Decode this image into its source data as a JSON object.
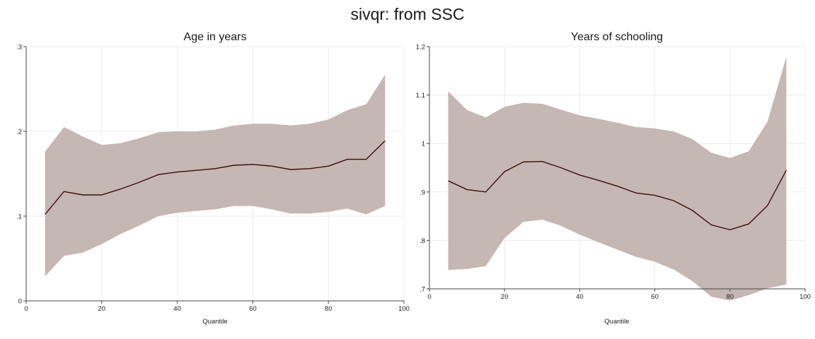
{
  "figure": {
    "title": "sivqr: from SSC"
  },
  "colors": {
    "band": "#c5b7b3",
    "line": "#3b0d0a"
  },
  "chart_data": [
    {
      "type": "area",
      "title": "Age in years",
      "xlabel": "Quantile",
      "ylabel": "",
      "xlim": [
        0,
        100
      ],
      "ylim": [
        0,
        0.3
      ],
      "xticks": [
        0,
        20,
        40,
        60,
        80,
        100
      ],
      "xtick_labels": [
        "0",
        "20",
        "40",
        "60",
        "80",
        "100"
      ],
      "yticks": [
        0,
        0.1,
        0.2,
        0.3
      ],
      "ytick_labels": [
        "0",
        ".1",
        ".2",
        ".3"
      ],
      "grid": true,
      "x": [
        5,
        10,
        15,
        20,
        25,
        30,
        35,
        40,
        45,
        50,
        55,
        60,
        65,
        70,
        75,
        80,
        85,
        90,
        95
      ],
      "series": [
        {
          "type": "line",
          "values": [
            0.102,
            0.129,
            0.125,
            0.125,
            0.132,
            0.14,
            0.149,
            0.152,
            0.154,
            0.156,
            0.16,
            0.161,
            0.159,
            0.155,
            0.156,
            0.159,
            0.167,
            0.167,
            0.189
          ]
        },
        {
          "type": "band",
          "lower": [
            0.029,
            0.053,
            0.057,
            0.067,
            0.079,
            0.089,
            0.1,
            0.104,
            0.106,
            0.108,
            0.112,
            0.112,
            0.108,
            0.103,
            0.103,
            0.105,
            0.109,
            0.102,
            0.112
          ],
          "upper": [
            0.176,
            0.205,
            0.194,
            0.184,
            0.186,
            0.192,
            0.199,
            0.2,
            0.2,
            0.202,
            0.207,
            0.209,
            0.209,
            0.207,
            0.209,
            0.214,
            0.225,
            0.232,
            0.267
          ]
        }
      ]
    },
    {
      "type": "area",
      "title": "Years of schooling",
      "xlabel": "Quantile",
      "ylabel": "",
      "xlim": [
        0,
        100
      ],
      "ylim": [
        0.7,
        1.2
      ],
      "xticks": [
        0,
        20,
        40,
        60,
        80,
        100
      ],
      "xtick_labels": [
        "0",
        "20",
        "40",
        "60",
        "80",
        "100"
      ],
      "yticks": [
        0.7,
        0.8,
        0.9,
        1.0,
        1.1,
        1.2
      ],
      "ytick_labels": [
        ".7",
        ".8",
        ".9",
        "1",
        "1.1",
        "1.2"
      ],
      "grid": true,
      "x": [
        5,
        10,
        15,
        20,
        25,
        30,
        35,
        40,
        45,
        50,
        55,
        60,
        65,
        70,
        75,
        80,
        85,
        90,
        95
      ],
      "series": [
        {
          "type": "line",
          "values": [
            0.923,
            0.905,
            0.9,
            0.942,
            0.962,
            0.963,
            0.95,
            0.935,
            0.924,
            0.912,
            0.898,
            0.893,
            0.882,
            0.862,
            0.832,
            0.822,
            0.834,
            0.872,
            0.945
          ]
        },
        {
          "type": "band",
          "lower": [
            0.739,
            0.741,
            0.747,
            0.805,
            0.838,
            0.843,
            0.83,
            0.812,
            0.796,
            0.781,
            0.766,
            0.756,
            0.74,
            0.716,
            0.684,
            0.676,
            0.687,
            0.701,
            0.709
          ],
          "upper": [
            1.108,
            1.069,
            1.054,
            1.076,
            1.084,
            1.082,
            1.07,
            1.058,
            1.051,
            1.043,
            1.034,
            1.031,
            1.025,
            1.009,
            0.981,
            0.97,
            0.984,
            1.045,
            1.179
          ]
        }
      ]
    }
  ]
}
